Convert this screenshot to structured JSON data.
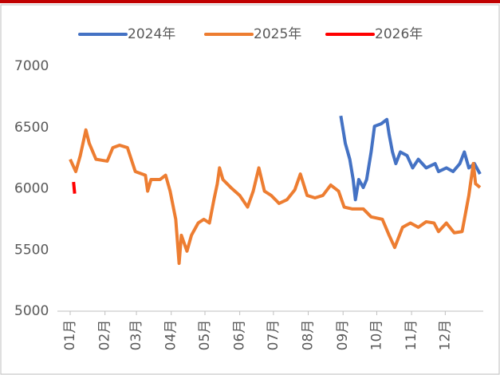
{
  "chart_data": {
    "type": "line",
    "xlim": [
      1,
      366
    ],
    "xticks": [
      {
        "value": 1,
        "label": "01月"
      },
      {
        "value": 32,
        "label": "02月"
      },
      {
        "value": 60,
        "label": "03月"
      },
      {
        "value": 91,
        "label": "04月"
      },
      {
        "value": 121,
        "label": "05月"
      },
      {
        "value": 152,
        "label": "06月"
      },
      {
        "value": 182,
        "label": "07月"
      },
      {
        "value": 213,
        "label": "08月"
      },
      {
        "value": 244,
        "label": "09月"
      },
      {
        "value": 274,
        "label": "10月"
      },
      {
        "value": 305,
        "label": "11月"
      },
      {
        "value": 335,
        "label": "12月"
      }
    ],
    "ylim": [
      5000,
      7000
    ],
    "yticks": [
      5000,
      5500,
      6000,
      6500,
      7000
    ],
    "legend": "top",
    "series": [
      {
        "name": "2024年",
        "color": "#4472c4",
        "x": [
          242,
          246,
          250,
          253,
          255,
          258,
          262,
          265,
          269,
          272,
          278,
          283,
          285,
          288,
          291,
          295,
          301,
          306,
          311,
          318,
          326,
          329,
          336,
          342,
          348,
          352,
          356,
          361,
          366
        ],
        "values": [
          6595,
          6370,
          6240,
          6075,
          5910,
          6075,
          6010,
          6075,
          6300,
          6510,
          6530,
          6565,
          6445,
          6300,
          6205,
          6300,
          6270,
          6170,
          6240,
          6170,
          6205,
          6140,
          6170,
          6140,
          6205,
          6300,
          6170,
          6205,
          6120
        ]
      },
      {
        "name": "2025年",
        "color": "#ed7d31",
        "x": [
          1,
          6,
          10,
          15,
          18,
          24,
          34,
          39,
          45,
          52,
          59,
          68,
          70,
          73,
          81,
          86,
          90,
          95,
          98,
          100,
          105,
          109,
          115,
          120,
          125,
          129,
          132,
          134,
          137,
          144,
          152,
          159,
          164,
          169,
          174,
          180,
          187,
          194,
          201,
          206,
          212,
          219,
          226,
          233,
          240,
          245,
          252,
          262,
          269,
          279,
          285,
          290,
          297,
          304,
          311,
          318,
          325,
          329,
          336,
          343,
          350,
          356,
          360,
          362,
          366
        ],
        "values": [
          6240,
          6140,
          6270,
          6480,
          6370,
          6240,
          6225,
          6335,
          6355,
          6335,
          6140,
          6110,
          5980,
          6075,
          6075,
          6110,
          5980,
          5750,
          5390,
          5620,
          5490,
          5620,
          5720,
          5750,
          5720,
          5910,
          6040,
          6170,
          6075,
          6010,
          5945,
          5850,
          5980,
          6170,
          5980,
          5945,
          5880,
          5910,
          5990,
          6120,
          5945,
          5925,
          5945,
          6030,
          5980,
          5850,
          5835,
          5835,
          5770,
          5750,
          5620,
          5520,
          5685,
          5720,
          5685,
          5730,
          5720,
          5650,
          5720,
          5640,
          5650,
          5945,
          6205,
          6040,
          6010
        ]
      },
      {
        "name": "2026年",
        "color": "#ff0000",
        "x": [
          4,
          5
        ],
        "values": [
          6055,
          5960
        ]
      }
    ]
  }
}
